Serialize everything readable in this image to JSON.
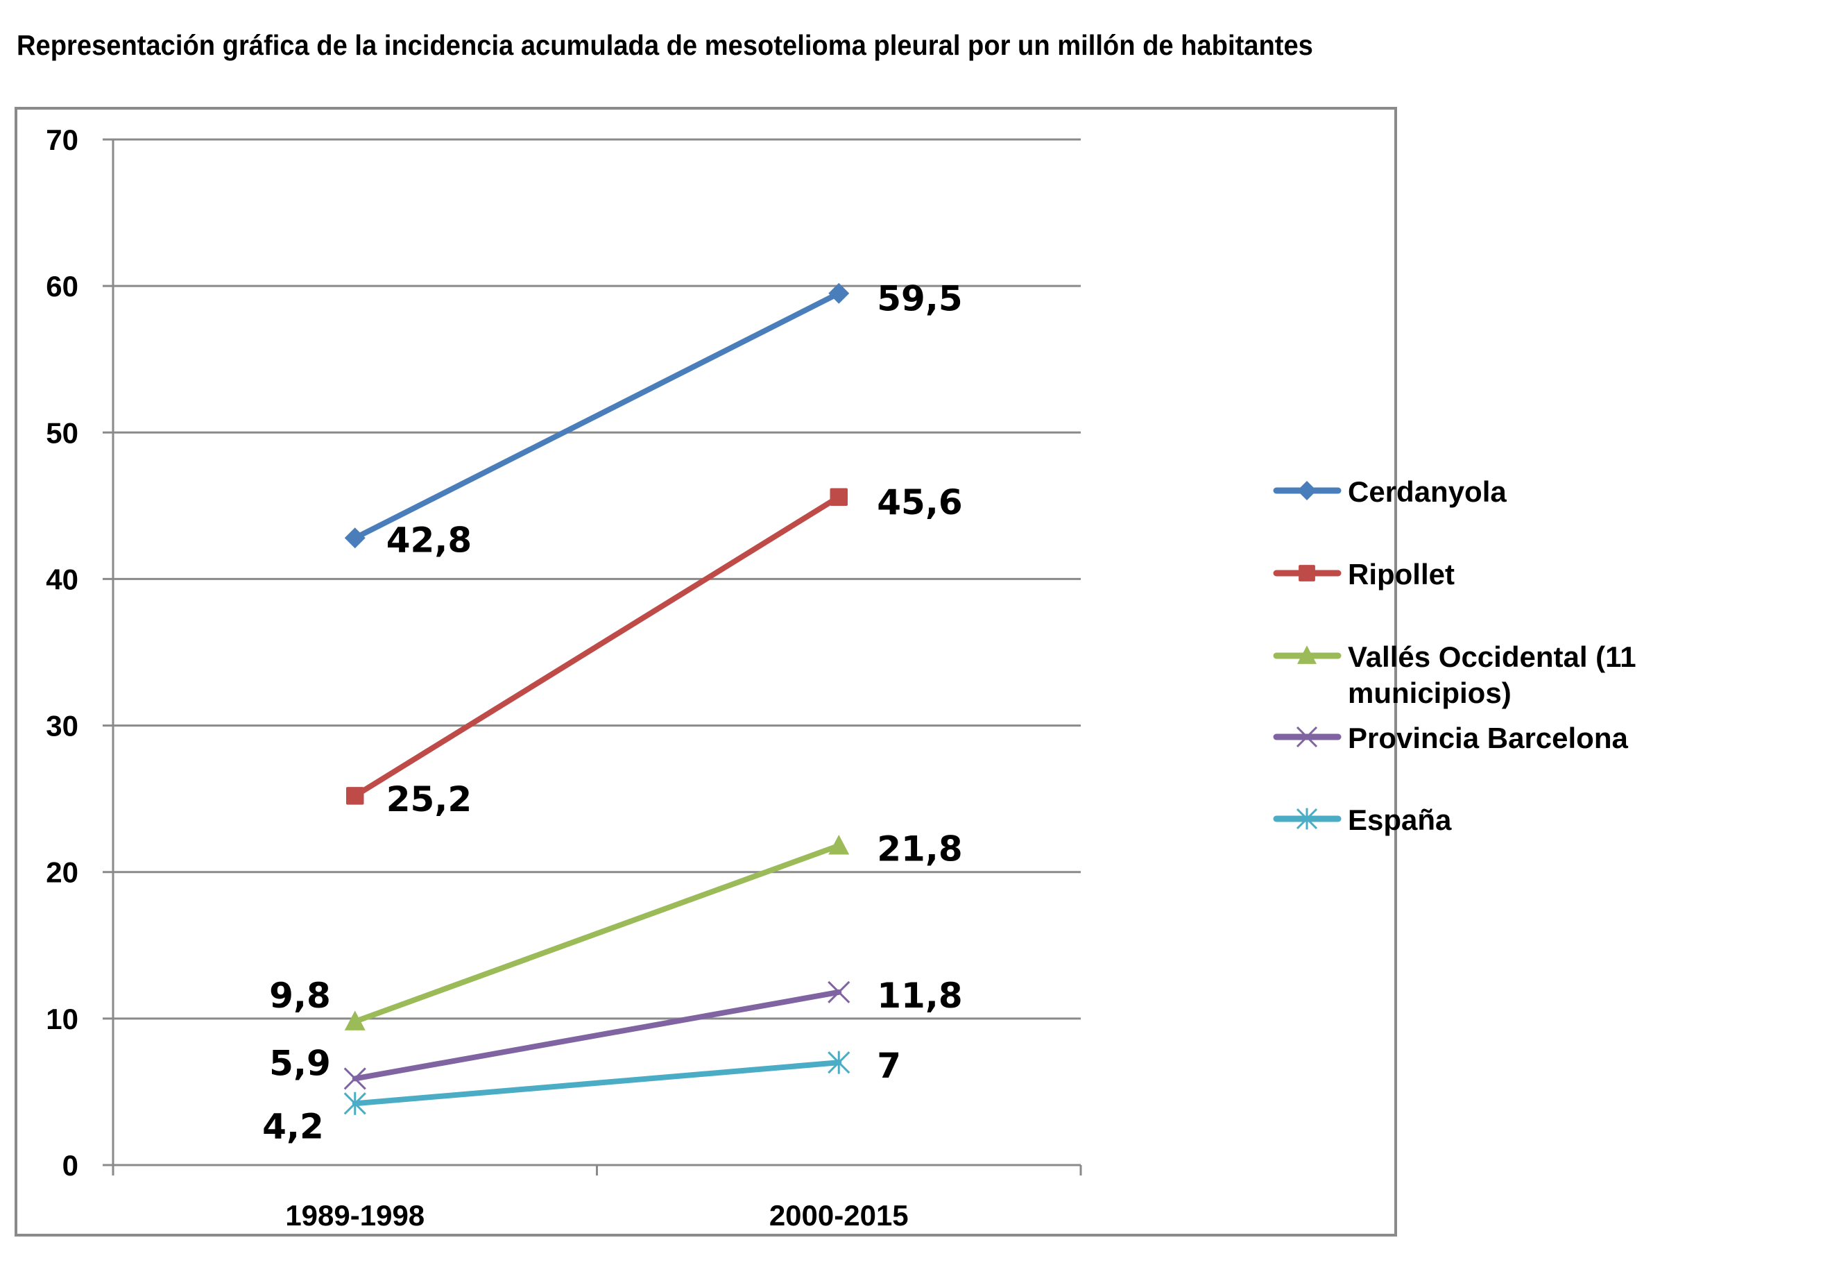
{
  "chart_data": {
    "type": "line",
    "title": "Representación gráfica de la incidencia acumulada de mesotelioma pleural por un millón de habitantes",
    "xlabel": "",
    "ylabel": "",
    "categories": [
      "1989-1998",
      "2000-2015"
    ],
    "ylim": [
      0,
      70
    ],
    "yticks": [
      "0",
      "10",
      "20",
      "30",
      "40",
      "50",
      "60",
      "70"
    ],
    "ytick_values": [
      0,
      10,
      20,
      30,
      40,
      50,
      60,
      70
    ],
    "grid": true,
    "legend_position": "right",
    "series": [
      {
        "name": "Cerdanyola",
        "values": [
          42.8,
          59.5
        ],
        "labels": [
          "42,8",
          "59,5"
        ],
        "color": "#4a7ebb",
        "marker": "diamond"
      },
      {
        "name": "Ripollet",
        "values": [
          25.2,
          45.6
        ],
        "labels": [
          "25,2",
          "45,6"
        ],
        "color": "#be4b48",
        "marker": "square"
      },
      {
        "name": "Vallés Occidental (11 municipios)",
        "legend_lines": [
          "Vallés Occidental (11",
          "municipios)"
        ],
        "values": [
          9.8,
          21.8
        ],
        "labels": [
          "9,8",
          "21,8"
        ],
        "color": "#9bbb59",
        "marker": "triangle"
      },
      {
        "name": "Provincia Barcelona",
        "values": [
          5.9,
          11.8
        ],
        "labels": [
          "5,9",
          "11,8"
        ],
        "color": "#8064a2",
        "marker": "x"
      },
      {
        "name": "España",
        "values": [
          4.2,
          7
        ],
        "labels": [
          "4,2",
          "7"
        ],
        "color": "#4bacc6",
        "marker": "asterisk"
      }
    ]
  }
}
